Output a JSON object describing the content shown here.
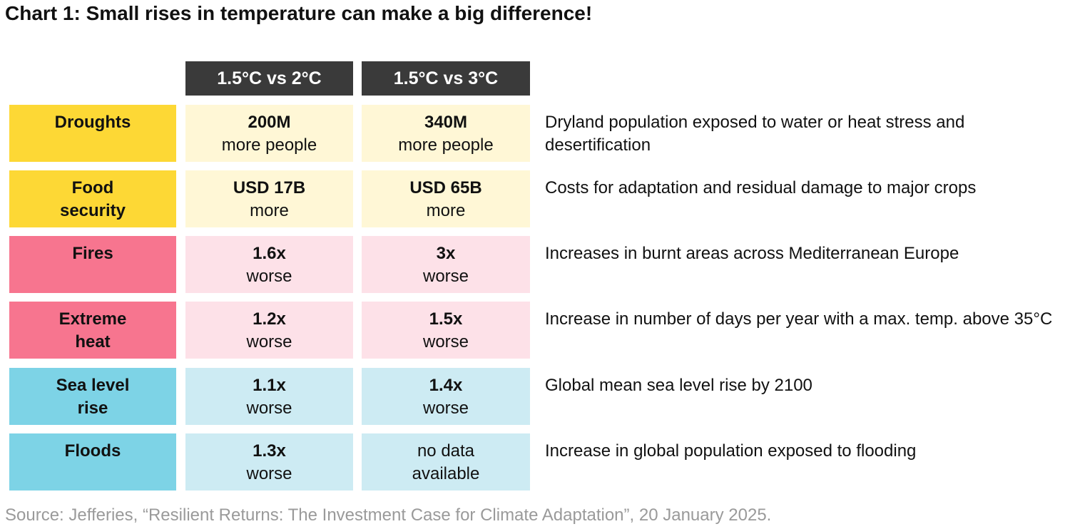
{
  "chart_data": {
    "type": "table",
    "title": "Chart 1: Small rises in temperature can make a big difference!",
    "columns": [
      "1.5°C vs 2°C",
      "1.5°C vs 3°C"
    ],
    "rows": [
      {
        "label": "Droughts",
        "group": "yellow",
        "c1_main": "200M",
        "c1_sub": "more people",
        "c2_main": "340M",
        "c2_sub": "more people",
        "desc": "Dryland population exposed to water or heat stress and desertification"
      },
      {
        "label": "Food security",
        "group": "yellow",
        "c1_main": "USD 17B",
        "c1_sub": "more",
        "c2_main": "USD 65B",
        "c2_sub": "more",
        "desc": "Costs for adaptation and residual damage to major crops"
      },
      {
        "label": "Fires",
        "group": "pink",
        "c1_main": "1.6x",
        "c1_sub": "worse",
        "c2_main": "3x",
        "c2_sub": "worse",
        "desc": "Increases in burnt areas across Mediterranean Europe"
      },
      {
        "label": "Extreme heat",
        "group": "pink",
        "c1_main": "1.2x",
        "c1_sub": "worse",
        "c2_main": "1.5x",
        "c2_sub": "worse",
        "desc": "Increase in number of days per year with a max. temp. above 35°C"
      },
      {
        "label": "Sea level rise",
        "group": "blue",
        "c1_main": "1.1x",
        "c1_sub": "worse",
        "c2_main": "1.4x",
        "c2_sub": "worse",
        "desc": "Global mean sea level rise by 2100"
      },
      {
        "label": "Floods",
        "group": "blue",
        "c1_main": "1.3x",
        "c1_sub": "worse",
        "c2_main": "",
        "c2_sub": "no data available",
        "desc": "Increase in global population exposed to flooding"
      }
    ],
    "source": "Source: Jefferies, “Resilient Returns: The Investment Case for Climate Adaptation”, 20 January 2025."
  },
  "colors": {
    "header_bg": "#3a3a3a",
    "yellow_label": "#fdd835",
    "yellow_cell": "#fff7d6",
    "pink_label": "#f7758f",
    "pink_cell": "#fde1e8",
    "blue_label": "#7dd3e6",
    "blue_cell": "#cdebf3"
  }
}
